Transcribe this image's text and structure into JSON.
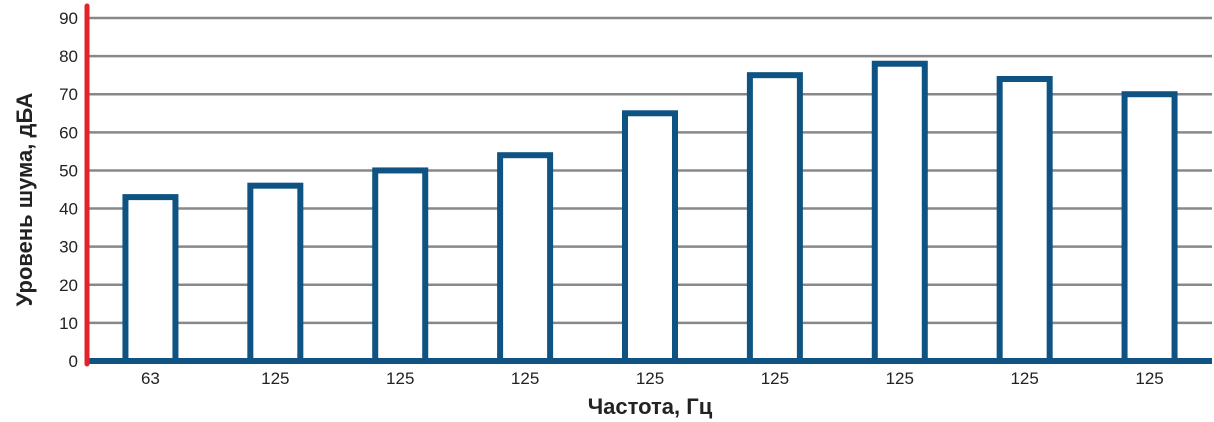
{
  "chart_data": {
    "type": "bar",
    "title": "",
    "xlabel": "Частота, Гц",
    "ylabel": "Уровень шума, дБА",
    "categories": [
      "63",
      "125",
      "125",
      "125",
      "125",
      "125",
      "125",
      "125",
      "125"
    ],
    "values": [
      43,
      46,
      50,
      54,
      65,
      75,
      78,
      74,
      70
    ],
    "ylim": [
      0,
      90
    ],
    "yticks": [
      0,
      10,
      20,
      30,
      40,
      50,
      60,
      70,
      80,
      90
    ],
    "grid": true,
    "legend": "none"
  },
  "colors": {
    "bar_outline": "#0e5382",
    "bar_fill": "#ffffff",
    "grid": "#888888",
    "y_axis": "#e3232c",
    "x_axis": "#0e5382"
  }
}
